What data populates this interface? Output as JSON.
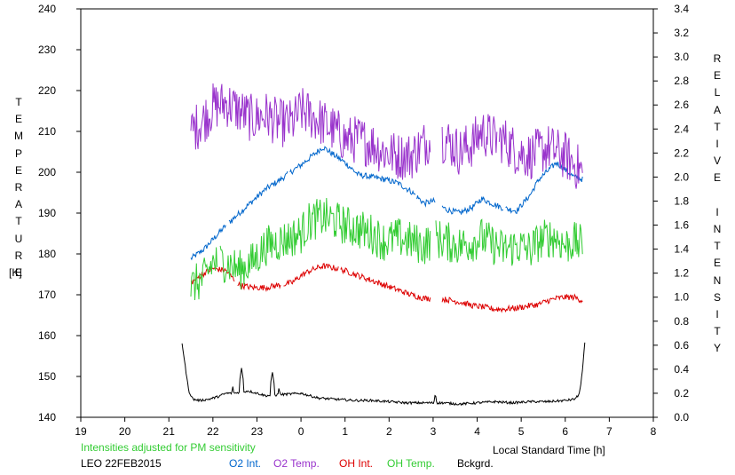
{
  "chart_data": {
    "type": "line",
    "station": "LEO 22FEB2015",
    "note": "Intensities adjusted for PM sensitivity",
    "xlabel": "Local Standard Time [h]",
    "ylabel_left_word": "TEMPERATURE",
    "ylabel_left_unit": "[K]",
    "ylabel_right_word1": "RELATIVE",
    "ylabel_right_word2": "INTENSITY",
    "xlim": [
      19,
      32
    ],
    "xticks": [
      "19",
      "20",
      "21",
      "22",
      "23",
      "0",
      "1",
      "2",
      "3",
      "4",
      "5",
      "6",
      "7",
      "8"
    ],
    "ylim_left": [
      140,
      240
    ],
    "yticks_left": [
      "140",
      "150",
      "160",
      "170",
      "180",
      "190",
      "200",
      "210",
      "220",
      "230",
      "240"
    ],
    "ylim_right": [
      0.0,
      3.4
    ],
    "yticks_right": [
      "0.0",
      "0.2",
      "0.4",
      "0.6",
      "0.8",
      "1.0",
      "1.2",
      "1.4",
      "1.6",
      "1.8",
      "2.0",
      "2.2",
      "2.4",
      "2.6",
      "2.8",
      "3.0",
      "3.2",
      "3.4"
    ],
    "x_axis_note": "x values in hours after 19:00 on 22FEB2015 shown as continuous 19-32 (24=0h)",
    "series": [
      {
        "name": "O2 Int.",
        "axis": "right",
        "color": "#0066cc",
        "noise": 0.025,
        "x": [
          21.5,
          21.8,
          22.0,
          22.3,
          22.6,
          22.9,
          23.2,
          23.5,
          23.8,
          24.0,
          24.2,
          24.5,
          24.8,
          25.0,
          25.3,
          25.6,
          25.9,
          26.2,
          26.5,
          26.8,
          27.0,
          27.3,
          27.6,
          27.9,
          28.1,
          28.4,
          28.6,
          28.9,
          29.2,
          29.4,
          29.6,
          29.8,
          30.0,
          30.2,
          30.4
        ],
        "y": [
          1.32,
          1.4,
          1.48,
          1.6,
          1.7,
          1.8,
          1.9,
          1.97,
          2.05,
          2.1,
          2.16,
          2.25,
          2.17,
          2.12,
          2.02,
          2.0,
          1.98,
          1.95,
          1.88,
          1.78,
          1.8,
          1.73,
          1.7,
          1.75,
          1.82,
          1.77,
          1.74,
          1.72,
          1.85,
          1.98,
          2.05,
          2.12,
          2.06,
          2.0,
          1.98
        ],
        "gaps": [
          [
            22.3,
            22.35
          ],
          [
            23.7,
            23.75
          ],
          [
            26.6,
            26.62
          ],
          [
            27.05,
            27.2
          ],
          [
            28.6,
            28.63
          ]
        ]
      },
      {
        "name": "O2 Temp.",
        "axis": "left",
        "color": "#9933cc",
        "noise": 6,
        "x": [
          21.5,
          21.8,
          22.0,
          22.3,
          22.6,
          22.9,
          23.2,
          23.5,
          23.8,
          24.0,
          24.2,
          24.5,
          24.8,
          25.0,
          25.3,
          25.6,
          25.9,
          26.2,
          26.5,
          26.8,
          27.0,
          27.3,
          27.6,
          27.9,
          28.1,
          28.4,
          28.6,
          28.9,
          29.2,
          29.4,
          29.6,
          29.8,
          30.0,
          30.2,
          30.4
        ],
        "y": [
          210,
          213,
          216,
          217,
          215,
          213,
          214,
          212,
          212,
          215,
          214,
          212,
          210,
          208,
          208,
          207,
          205,
          204,
          204,
          207,
          209,
          208,
          205,
          207,
          210,
          208,
          208,
          205,
          204,
          205,
          206,
          205,
          204,
          202,
          200
        ],
        "gaps": [
          [
            26.95,
            27.2
          ],
          [
            28.45,
            28.5
          ]
        ]
      },
      {
        "name": "OH Int.",
        "axis": "right",
        "color": "#dd0000",
        "noise": 0.025,
        "x": [
          21.5,
          21.8,
          22.0,
          22.3,
          22.6,
          22.9,
          23.2,
          23.5,
          23.8,
          24.0,
          24.2,
          24.5,
          24.8,
          25.0,
          25.3,
          25.6,
          25.9,
          26.2,
          26.5,
          26.8,
          27.0,
          27.3,
          27.6,
          27.9,
          28.1,
          28.4,
          28.6,
          28.9,
          29.2,
          29.4,
          29.6,
          29.8,
          30.0,
          30.2,
          30.4
        ],
        "y": [
          1.12,
          1.2,
          1.24,
          1.22,
          1.1,
          1.08,
          1.08,
          1.1,
          1.12,
          1.18,
          1.22,
          1.26,
          1.24,
          1.22,
          1.18,
          1.14,
          1.1,
          1.06,
          1.02,
          0.99,
          0.99,
          0.98,
          0.96,
          0.93,
          0.92,
          0.9,
          0.9,
          0.91,
          0.93,
          0.94,
          0.97,
          0.99,
          1.0,
          1.0,
          0.97
        ],
        "gaps": [
          [
            22.5,
            22.55
          ],
          [
            23.55,
            23.6
          ],
          [
            24.85,
            24.9
          ],
          [
            26.95,
            27.2
          ]
        ]
      },
      {
        "name": "OH Temp.",
        "axis": "left",
        "color": "#33cc33",
        "noise": 5,
        "x": [
          21.5,
          21.8,
          22.0,
          22.3,
          22.6,
          22.9,
          23.2,
          23.5,
          23.8,
          24.0,
          24.2,
          24.5,
          24.8,
          25.0,
          25.3,
          25.6,
          25.9,
          26.2,
          26.5,
          26.8,
          27.0,
          27.3,
          27.6,
          27.9,
          28.1,
          28.4,
          28.6,
          28.9,
          29.2,
          29.4,
          29.6,
          29.8,
          30.0,
          30.2,
          30.4
        ],
        "y": [
          172,
          174,
          178,
          178,
          176,
          178,
          182,
          183,
          184,
          185,
          188,
          189,
          188,
          187,
          186,
          185,
          183,
          184,
          183,
          182,
          184,
          183,
          182,
          183,
          184,
          182,
          181,
          182,
          181,
          183,
          184,
          184,
          182,
          183,
          182
        ],
        "gaps": [
          [
            22.1,
            22.15
          ],
          [
            26.95,
            27.05
          ]
        ]
      },
      {
        "name": "Bckgrd.",
        "axis": "right",
        "color": "#000000",
        "noise": 0.01,
        "x": [
          21.3,
          21.38,
          21.45,
          21.55,
          21.7,
          21.9,
          22.1,
          22.3,
          22.5,
          22.8,
          23.2,
          23.6,
          24.0,
          24.4,
          24.8,
          25.2,
          25.6,
          26.0,
          26.4,
          26.8,
          27.2,
          27.6,
          28.0,
          28.4,
          28.8,
          29.2,
          29.6,
          30.0,
          30.2,
          30.3,
          30.35,
          30.4,
          30.45
        ],
        "y": [
          0.62,
          0.4,
          0.22,
          0.15,
          0.14,
          0.15,
          0.17,
          0.2,
          0.2,
          0.22,
          0.18,
          0.19,
          0.2,
          0.16,
          0.15,
          0.14,
          0.14,
          0.13,
          0.12,
          0.12,
          0.12,
          0.11,
          0.12,
          0.13,
          0.12,
          0.13,
          0.13,
          0.14,
          0.15,
          0.18,
          0.26,
          0.42,
          0.65
        ],
        "spikes": [
          [
            22.45,
            0.26
          ],
          [
            22.65,
            0.41
          ],
          [
            22.75,
            0.2
          ],
          [
            23.35,
            0.38
          ],
          [
            23.5,
            0.25
          ],
          [
            27.05,
            0.2
          ]
        ]
      }
    ]
  }
}
